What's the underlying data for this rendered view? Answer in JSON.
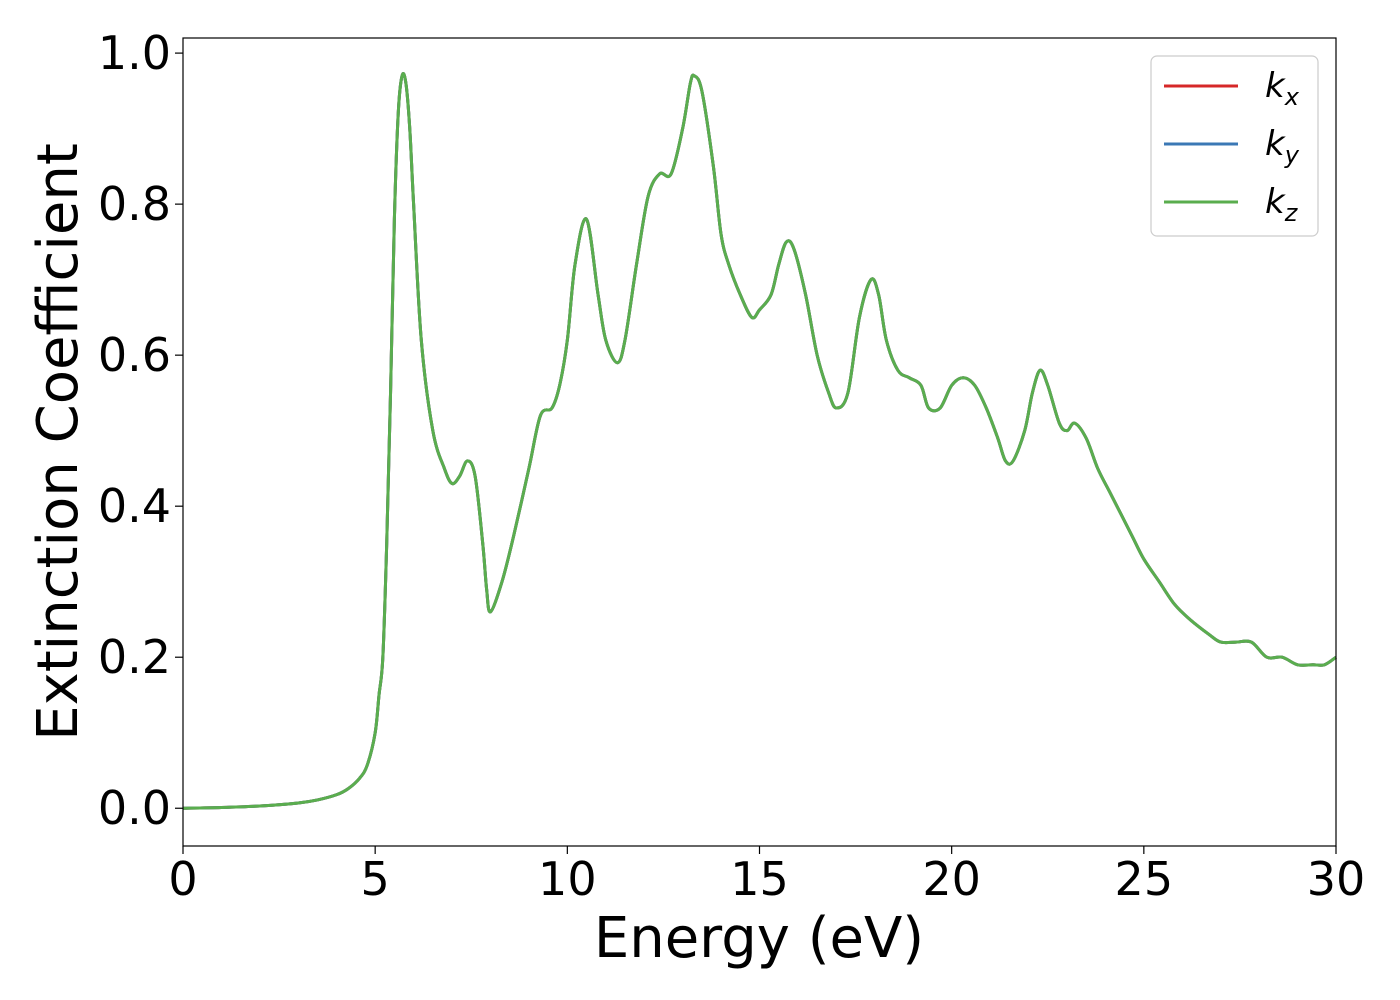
{
  "chart_data": {
    "type": "line",
    "xlabel": "Energy (eV)",
    "ylabel": "Extinction Coefficient",
    "xlim": [
      0,
      30
    ],
    "ylim": [
      -0.05,
      1.02
    ],
    "xticks": [
      0,
      5,
      10,
      15,
      20,
      25,
      30
    ],
    "yticks": [
      0.0,
      0.2,
      0.4,
      0.6,
      0.8,
      1.0
    ],
    "xtick_labels": [
      "0",
      "5",
      "10",
      "15",
      "20",
      "25",
      "30"
    ],
    "ytick_labels": [
      "0.0",
      "0.2",
      "0.4",
      "0.6",
      "0.8",
      "1.0"
    ],
    "grid": false,
    "legend_position": "top-right",
    "x": [
      0,
      1,
      2,
      3,
      3.5,
      4,
      4.3,
      4.6,
      4.8,
      5.0,
      5.1,
      5.2,
      5.3,
      5.4,
      5.5,
      5.6,
      5.7,
      5.8,
      5.9,
      6.0,
      6.2,
      6.5,
      6.8,
      7.0,
      7.2,
      7.4,
      7.6,
      7.8,
      7.9,
      8.0,
      8.3,
      8.6,
      9.0,
      9.3,
      9.6,
      9.8,
      10.0,
      10.2,
      10.5,
      10.8,
      11.0,
      11.3,
      11.5,
      11.8,
      12.1,
      12.4,
      12.7,
      13.0,
      13.2,
      13.3,
      13.5,
      13.8,
      14.0,
      14.2,
      14.5,
      14.8,
      15.0,
      15.3,
      15.5,
      15.7,
      15.9,
      16.2,
      16.5,
      16.8,
      17.0,
      17.3,
      17.6,
      17.9,
      18.1,
      18.3,
      18.6,
      18.9,
      19.2,
      19.4,
      19.7,
      20.0,
      20.3,
      20.6,
      20.9,
      21.2,
      21.4,
      21.6,
      21.9,
      22.1,
      22.3,
      22.5,
      22.8,
      23.0,
      23.2,
      23.5,
      23.8,
      24.1,
      24.4,
      24.7,
      25.0,
      25.4,
      25.8,
      26.2,
      26.7,
      27.0,
      27.4,
      27.8,
      28.2,
      28.6,
      29.0,
      29.4,
      29.7,
      30.0
    ],
    "series": [
      {
        "name": "k_x",
        "color": "#d62728",
        "values": [
          0,
          0.001,
          0.003,
          0.007,
          0.011,
          0.018,
          0.026,
          0.04,
          0.058,
          0.1,
          0.15,
          0.2,
          0.35,
          0.55,
          0.78,
          0.92,
          0.97,
          0.96,
          0.9,
          0.8,
          0.62,
          0.5,
          0.45,
          0.43,
          0.44,
          0.46,
          0.44,
          0.35,
          0.29,
          0.26,
          0.3,
          0.36,
          0.45,
          0.52,
          0.53,
          0.56,
          0.62,
          0.72,
          0.78,
          0.68,
          0.62,
          0.59,
          0.62,
          0.72,
          0.81,
          0.84,
          0.84,
          0.9,
          0.96,
          0.97,
          0.95,
          0.85,
          0.76,
          0.72,
          0.68,
          0.65,
          0.66,
          0.68,
          0.72,
          0.75,
          0.74,
          0.68,
          0.6,
          0.55,
          0.53,
          0.55,
          0.65,
          0.7,
          0.68,
          0.62,
          0.58,
          0.57,
          0.56,
          0.53,
          0.53,
          0.56,
          0.57,
          0.56,
          0.53,
          0.49,
          0.46,
          0.46,
          0.5,
          0.55,
          0.58,
          0.56,
          0.51,
          0.5,
          0.51,
          0.49,
          0.45,
          0.42,
          0.39,
          0.36,
          0.33,
          0.3,
          0.27,
          0.25,
          0.23,
          0.22,
          0.22,
          0.22,
          0.2,
          0.2,
          0.19,
          0.19,
          0.19,
          0.2
        ]
      },
      {
        "name": "k_y",
        "color": "#3b78b5",
        "values": [
          0,
          0.001,
          0.003,
          0.007,
          0.011,
          0.018,
          0.026,
          0.04,
          0.058,
          0.1,
          0.15,
          0.2,
          0.35,
          0.55,
          0.78,
          0.92,
          0.97,
          0.96,
          0.9,
          0.8,
          0.62,
          0.5,
          0.45,
          0.43,
          0.44,
          0.46,
          0.44,
          0.35,
          0.29,
          0.26,
          0.3,
          0.36,
          0.45,
          0.52,
          0.53,
          0.56,
          0.62,
          0.72,
          0.78,
          0.68,
          0.62,
          0.59,
          0.62,
          0.72,
          0.81,
          0.84,
          0.84,
          0.9,
          0.96,
          0.97,
          0.95,
          0.85,
          0.76,
          0.72,
          0.68,
          0.65,
          0.66,
          0.68,
          0.72,
          0.75,
          0.74,
          0.68,
          0.6,
          0.55,
          0.53,
          0.55,
          0.65,
          0.7,
          0.68,
          0.62,
          0.58,
          0.57,
          0.56,
          0.53,
          0.53,
          0.56,
          0.57,
          0.56,
          0.53,
          0.49,
          0.46,
          0.46,
          0.5,
          0.55,
          0.58,
          0.56,
          0.51,
          0.5,
          0.51,
          0.49,
          0.45,
          0.42,
          0.39,
          0.36,
          0.33,
          0.3,
          0.27,
          0.25,
          0.23,
          0.22,
          0.22,
          0.22,
          0.2,
          0.2,
          0.19,
          0.19,
          0.19,
          0.2
        ]
      },
      {
        "name": "k_z",
        "color": "#5aad4e",
        "values": [
          0,
          0.001,
          0.003,
          0.007,
          0.011,
          0.018,
          0.026,
          0.04,
          0.058,
          0.1,
          0.15,
          0.2,
          0.35,
          0.55,
          0.78,
          0.92,
          0.97,
          0.96,
          0.9,
          0.8,
          0.62,
          0.5,
          0.45,
          0.43,
          0.44,
          0.46,
          0.44,
          0.35,
          0.29,
          0.26,
          0.3,
          0.36,
          0.45,
          0.52,
          0.53,
          0.56,
          0.62,
          0.72,
          0.78,
          0.68,
          0.62,
          0.59,
          0.62,
          0.72,
          0.81,
          0.84,
          0.84,
          0.9,
          0.96,
          0.97,
          0.95,
          0.85,
          0.76,
          0.72,
          0.68,
          0.65,
          0.66,
          0.68,
          0.72,
          0.75,
          0.74,
          0.68,
          0.6,
          0.55,
          0.53,
          0.55,
          0.65,
          0.7,
          0.68,
          0.62,
          0.58,
          0.57,
          0.56,
          0.53,
          0.53,
          0.56,
          0.57,
          0.56,
          0.53,
          0.49,
          0.46,
          0.46,
          0.5,
          0.55,
          0.58,
          0.56,
          0.51,
          0.5,
          0.51,
          0.49,
          0.45,
          0.42,
          0.39,
          0.36,
          0.33,
          0.3,
          0.27,
          0.25,
          0.23,
          0.22,
          0.22,
          0.22,
          0.2,
          0.2,
          0.19,
          0.19,
          0.19,
          0.2
        ]
      }
    ],
    "legend": [
      {
        "symbol": "k",
        "sub": "x",
        "color": "#d62728"
      },
      {
        "symbol": "k",
        "sub": "y",
        "color": "#3b78b5"
      },
      {
        "symbol": "k",
        "sub": "z",
        "color": "#5aad4e"
      }
    ]
  }
}
